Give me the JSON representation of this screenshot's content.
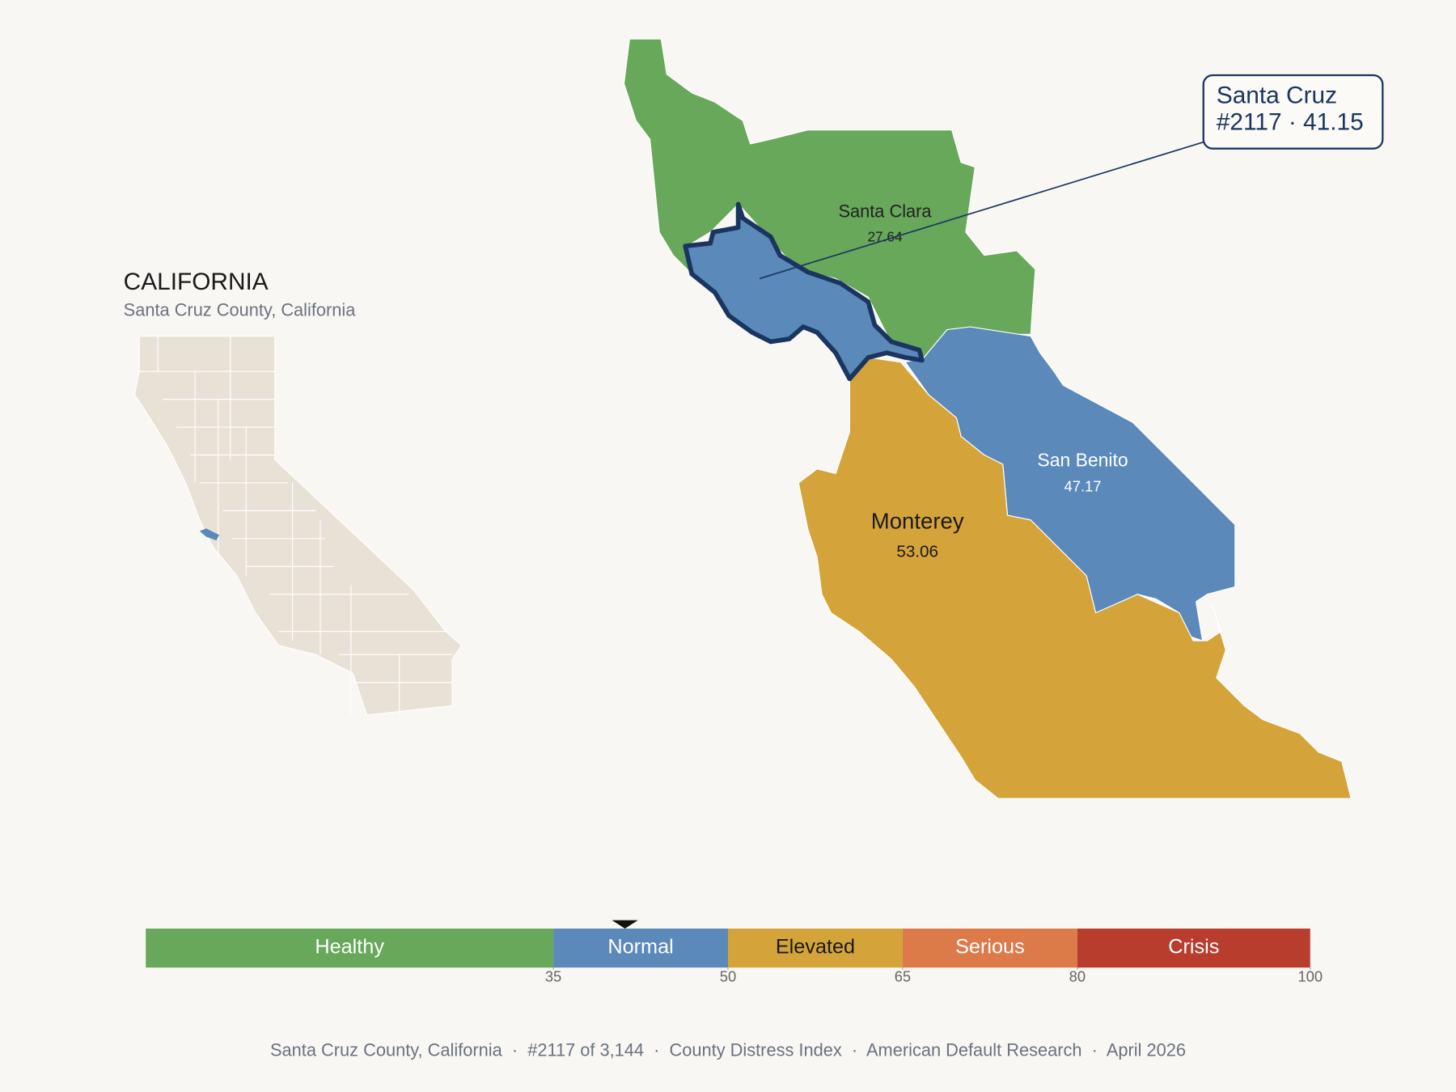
{
  "inset": {
    "title": "CALIFORNIA",
    "subtitle": "Santa Cruz County, California",
    "highlight_color": "#5b89b9"
  },
  "counties": [
    {
      "name": "Santa Clara",
      "value": 27.64,
      "color": "#67a85a"
    },
    {
      "name": "Santa Cruz",
      "value": 41.15,
      "color": "#5b89b9"
    },
    {
      "name": "San Benito",
      "value": 47.17,
      "color": "#5b89b9"
    },
    {
      "name": "Monterey",
      "value": 53.06,
      "color": "#d4a43a"
    }
  ],
  "callout": {
    "name": "Santa Cruz",
    "detail": "#2117 · 41.15"
  },
  "scale": {
    "range": [
      0,
      100
    ],
    "bands": [
      {
        "label": "Healthy",
        "from": 0,
        "to": 35,
        "color": "#67a85a"
      },
      {
        "label": "Normal",
        "from": 35,
        "to": 50,
        "color": "#5b89b9"
      },
      {
        "label": "Elevated",
        "from": 50,
        "to": 65,
        "color": "#d4a43a"
      },
      {
        "label": "Serious",
        "from": 65,
        "to": 80,
        "color": "#dc7a4a"
      },
      {
        "label": "Crisis",
        "from": 80,
        "to": 100,
        "color": "#b93d2c"
      }
    ],
    "ticks": [
      35,
      50,
      65,
      80,
      100
    ],
    "marker": 41.15
  },
  "footer": "Santa Cruz County, California  ·  #2117 of 3,144  ·  County Distress Index  ·  American Default Research  ·  April 2026"
}
